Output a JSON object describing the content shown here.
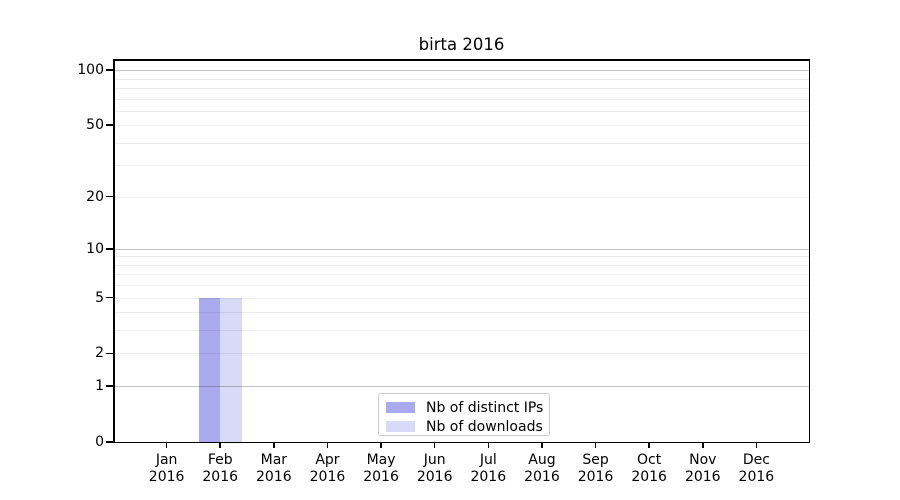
{
  "chart": {
    "title": "birta 2016",
    "chart_data": {
      "type": "bar",
      "title": "birta 2016",
      "xlabel": "",
      "ylabel": "",
      "y_scale": "log1p",
      "ylim": [
        0,
        115
      ],
      "grid": true,
      "legend_position": "lower center",
      "categories": [
        "Jan 2016",
        "Feb 2016",
        "Mar 2016",
        "Apr 2016",
        "May 2016",
        "Jun 2016",
        "Jul 2016",
        "Aug 2016",
        "Sep 2016",
        "Oct 2016",
        "Nov 2016",
        "Dec 2016"
      ],
      "series": [
        {
          "name": "Nb of distinct IPs",
          "color": "#aaaaee",
          "values": [
            0,
            5,
            0,
            0,
            0,
            0,
            0,
            0,
            0,
            0,
            0,
            0
          ]
        },
        {
          "name": "Nb of downloads",
          "color": "#d9d9f8",
          "values": [
            0,
            5,
            0,
            0,
            0,
            0,
            0,
            0,
            0,
            0,
            0,
            0
          ]
        }
      ]
    },
    "x_tick_labels": [
      [
        "Jan",
        "2016"
      ],
      [
        "Feb",
        "2016"
      ],
      [
        "Mar",
        "2016"
      ],
      [
        "Apr",
        "2016"
      ],
      [
        "May",
        "2016"
      ],
      [
        "Jun",
        "2016"
      ],
      [
        "Jul",
        "2016"
      ],
      [
        "Aug",
        "2016"
      ],
      [
        "Sep",
        "2016"
      ],
      [
        "Oct",
        "2016"
      ],
      [
        "Nov",
        "2016"
      ],
      [
        "Dec",
        "2016"
      ]
    ],
    "y_ticks": [
      0,
      1,
      2,
      5,
      10,
      20,
      50,
      100
    ],
    "y_gridlines_light": [
      2,
      3,
      4,
      5,
      6,
      7,
      8,
      9,
      20,
      30,
      40,
      50,
      60,
      70,
      80,
      90
    ],
    "y_gridlines_dark": [
      1,
      10,
      100
    ],
    "series": [
      {
        "name": "Nb of distinct IPs",
        "color": "#aaaaee"
      },
      {
        "name": "Nb of downloads",
        "color": "#d9d9f8"
      }
    ],
    "colors": {
      "bar_distinct_ips": "#aaaaee",
      "bar_downloads": "#d9d9f8",
      "gridline_light": "#ececec",
      "gridline_dark": "#c3c3c3",
      "spine": "#000000",
      "legend_border": "#cccccc"
    }
  }
}
